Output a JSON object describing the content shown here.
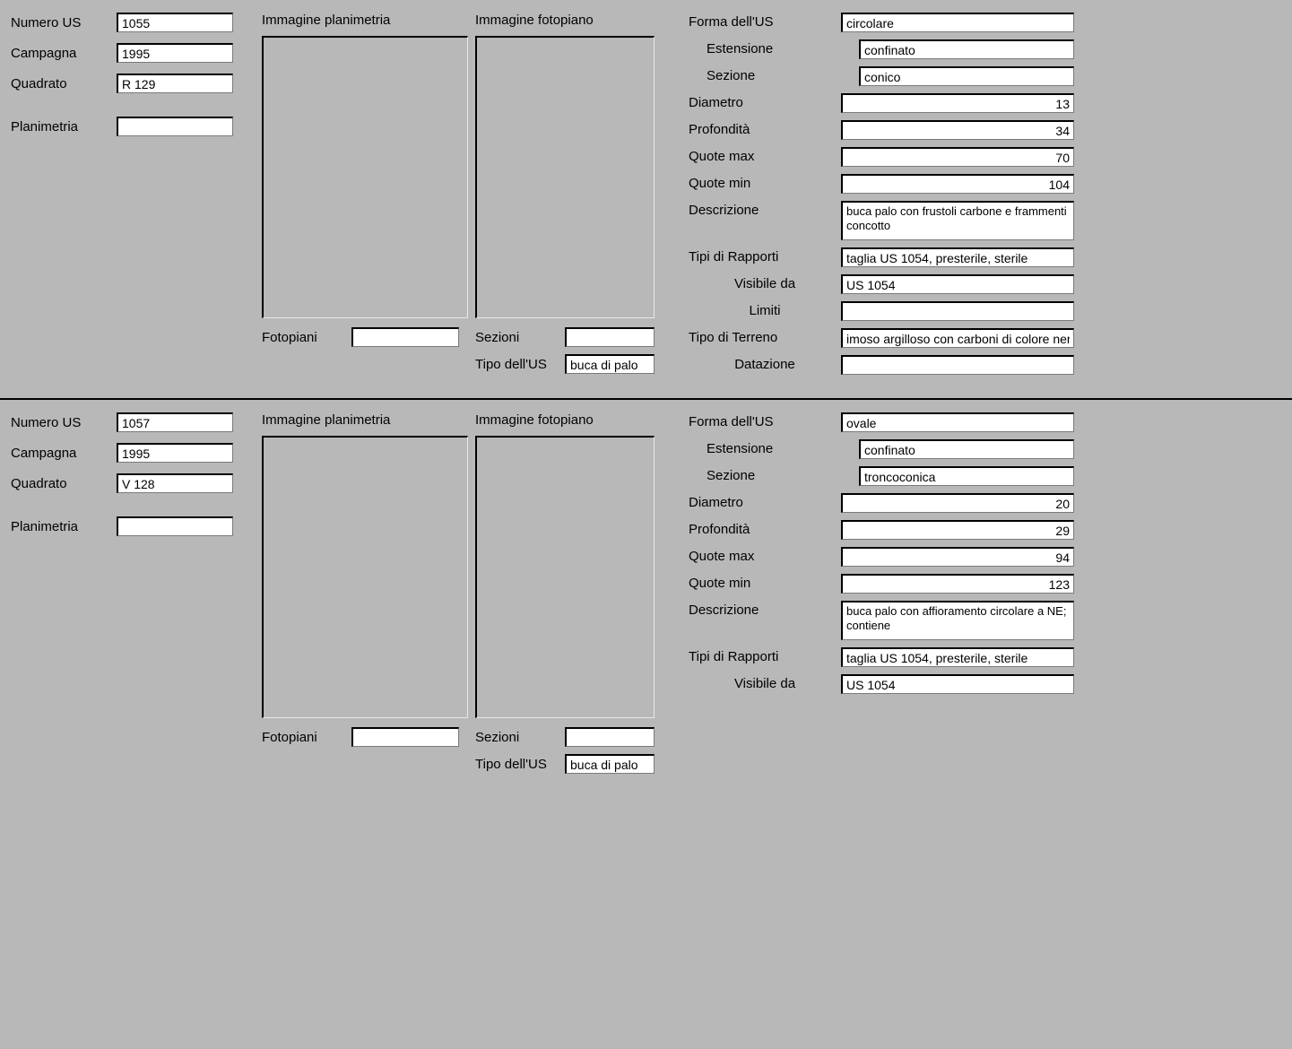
{
  "labels": {
    "numero_us": "Numero US",
    "campagna": "Campagna",
    "quadrato": "Quadrato",
    "planimetria": "Planimetria",
    "immagine_planimetria": "Immagine planimetria",
    "immagine_fotopiano": "Immagine fotopiano",
    "fotopiani": "Fotopiani",
    "sezioni": "Sezioni",
    "tipo_us": "Tipo dell'US",
    "forma_us": "Forma dell'US",
    "estensione": "Estensione",
    "sezione": "Sezione",
    "diametro": "Diametro",
    "profondita": "Profondità",
    "quote_max": "Quote max",
    "quote_min": "Quote min",
    "descrizione": "Descrizione",
    "tipi_rapporti": "Tipi di Rapporti",
    "visibile_da": "Visibile da",
    "limiti": "Limiti",
    "tipo_terreno": "Tipo di Terreno",
    "datazione": "Datazione"
  },
  "records": [
    {
      "numero_us": "1055",
      "campagna": "1995",
      "quadrato": "R 129",
      "planimetria": "",
      "fotopiani": "",
      "sezioni": "",
      "tipo_us": "buca di palo",
      "forma_us": "circolare",
      "estensione": "confinato",
      "sezione": "conico",
      "diametro": "13",
      "profondita": "34",
      "quote_max": "70",
      "quote_min": "104",
      "descrizione": "buca palo con frustoli carbone e frammenti concotto",
      "tipi_rapporti": "taglia US 1054, presterile, sterile",
      "visibile_da": "US 1054",
      "limiti": "",
      "tipo_terreno": "imoso argilloso con carboni di colore nero",
      "datazione": ""
    },
    {
      "numero_us": "1057",
      "campagna": "1995",
      "quadrato": "V 128",
      "planimetria": "",
      "fotopiani": "",
      "sezioni": "",
      "tipo_us": "buca di palo",
      "forma_us": "ovale",
      "estensione": "confinato",
      "sezione": "troncoconica",
      "diametro": "20",
      "profondita": "29",
      "quote_max": "94",
      "quote_min": "123",
      "descrizione": "buca palo con affioramento circolare a NE; contiene",
      "tipi_rapporti": "taglia US 1054, presterile, sterile",
      "visibile_da": "US 1054",
      "limiti": "",
      "tipo_terreno": "",
      "datazione": ""
    }
  ]
}
